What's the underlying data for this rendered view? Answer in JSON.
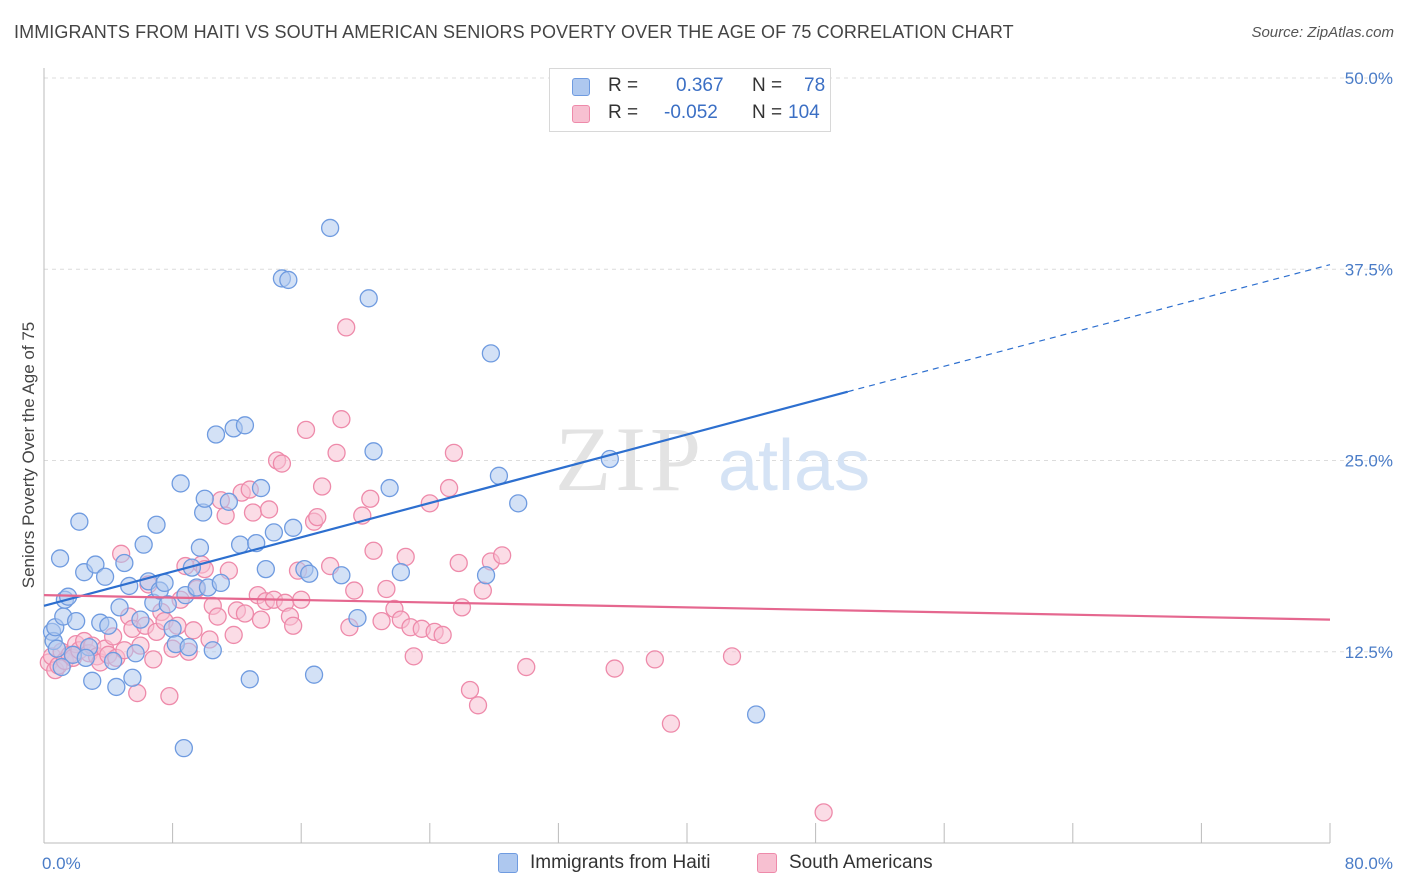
{
  "title": "IMMIGRANTS FROM HAITI VS SOUTH AMERICAN SENIORS POVERTY OVER THE AGE OF 75 CORRELATION CHART",
  "source": "Source: ZipAtlas.com",
  "watermark": {
    "zip": "ZIP",
    "atlas": "atlas"
  },
  "legend": {
    "r_label": "R =",
    "n_label": "N =",
    "series1": {
      "r": "0.367",
      "n": "78"
    },
    "series2": {
      "r": "-0.052",
      "n": "104"
    }
  },
  "colors": {
    "blue_fill": "#aec8ef",
    "blue_stroke": "#6f9be0",
    "blue_line": "#2d6fcf",
    "pink_fill": "#f7c0d1",
    "pink_stroke": "#ee8aaa",
    "pink_line": "#e5678f",
    "grid": "#dcdcdc",
    "tick_text": "#4a7cc7"
  },
  "chart_data": {
    "type": "scatter",
    "title": "IMMIGRANTS FROM HAITI VS SOUTH AMERICAN SENIORS POVERTY OVER THE AGE OF 75 CORRELATION CHART",
    "xlabel": "",
    "ylabel": "Seniors Poverty Over the Age of 75",
    "xlim": [
      0,
      80
    ],
    "ylim": [
      0,
      50
    ],
    "x_tick_labels": [
      "0.0%",
      "80.0%"
    ],
    "y_ticks": [
      12.5,
      25.0,
      37.5,
      50.0
    ],
    "y_tick_labels": [
      "12.5%",
      "25.0%",
      "37.5%",
      "50.0%"
    ],
    "grid": true,
    "legend_position": "top-center",
    "series": [
      {
        "name": "Immigrants from Haiti",
        "color": "#6f9be0",
        "trend": {
          "x0": 0,
          "y0": 15.5,
          "x1": 50,
          "y1": 29.5,
          "dashed_to_x": 80,
          "dashed_to_y": 37.8
        },
        "points": [
          [
            0.5,
            13.8
          ],
          [
            0.6,
            13.2
          ],
          [
            0.7,
            14.1
          ],
          [
            0.8,
            12.7
          ],
          [
            1.0,
            18.6
          ],
          [
            1.2,
            14.8
          ],
          [
            1.3,
            15.9
          ],
          [
            1.5,
            16.1
          ],
          [
            1.8,
            12.3
          ],
          [
            2.0,
            14.5
          ],
          [
            2.2,
            21.0
          ],
          [
            2.5,
            17.7
          ],
          [
            2.8,
            12.8
          ],
          [
            3.0,
            10.6
          ],
          [
            3.2,
            18.2
          ],
          [
            3.5,
            14.4
          ],
          [
            3.8,
            17.4
          ],
          [
            4.0,
            14.2
          ],
          [
            4.3,
            11.9
          ],
          [
            4.5,
            10.2
          ],
          [
            4.7,
            15.4
          ],
          [
            5.0,
            18.3
          ],
          [
            5.3,
            16.8
          ],
          [
            5.5,
            10.8
          ],
          [
            5.7,
            12.4
          ],
          [
            6.0,
            14.6
          ],
          [
            6.2,
            19.5
          ],
          [
            6.5,
            17.1
          ],
          [
            6.8,
            15.7
          ],
          [
            7.0,
            20.8
          ],
          [
            7.2,
            16.5
          ],
          [
            7.5,
            17.0
          ],
          [
            7.7,
            15.6
          ],
          [
            8.0,
            14.0
          ],
          [
            8.2,
            13.0
          ],
          [
            8.5,
            23.5
          ],
          [
            8.7,
            6.2
          ],
          [
            8.8,
            16.2
          ],
          [
            9.0,
            12.8
          ],
          [
            9.2,
            18.0
          ],
          [
            9.5,
            16.7
          ],
          [
            9.7,
            19.3
          ],
          [
            9.9,
            21.6
          ],
          [
            10.0,
            22.5
          ],
          [
            10.2,
            16.7
          ],
          [
            10.5,
            12.6
          ],
          [
            10.7,
            26.7
          ],
          [
            11.0,
            17.0
          ],
          [
            11.5,
            22.3
          ],
          [
            11.8,
            27.1
          ],
          [
            12.2,
            19.5
          ],
          [
            12.5,
            27.3
          ],
          [
            12.8,
            10.7
          ],
          [
            13.2,
            19.6
          ],
          [
            13.5,
            23.2
          ],
          [
            13.8,
            17.9
          ],
          [
            14.3,
            20.3
          ],
          [
            14.8,
            36.9
          ],
          [
            15.2,
            36.8
          ],
          [
            15.5,
            20.6
          ],
          [
            16.2,
            17.9
          ],
          [
            16.5,
            17.6
          ],
          [
            16.8,
            11.0
          ],
          [
            17.8,
            40.2
          ],
          [
            18.5,
            17.5
          ],
          [
            19.5,
            14.7
          ],
          [
            20.2,
            35.6
          ],
          [
            20.5,
            25.6
          ],
          [
            21.5,
            23.2
          ],
          [
            22.2,
            17.7
          ],
          [
            27.8,
            32.0
          ],
          [
            27.5,
            17.5
          ],
          [
            28.3,
            24.0
          ],
          [
            29.5,
            22.2
          ],
          [
            35.2,
            25.1
          ],
          [
            44.3,
            8.4
          ],
          [
            1.1,
            11.5
          ],
          [
            2.6,
            12.1
          ]
        ]
      },
      {
        "name": "South Americans",
        "color": "#ee8aaa",
        "trend": {
          "x0": 0,
          "y0": 16.2,
          "x1": 80,
          "y1": 14.6
        },
        "points": [
          [
            0.3,
            11.8
          ],
          [
            0.5,
            12.2
          ],
          [
            0.7,
            11.3
          ],
          [
            0.9,
            11.6
          ],
          [
            1.1,
            12.5
          ],
          [
            1.3,
            11.9
          ],
          [
            1.6,
            12.3
          ],
          [
            1.8,
            12.1
          ],
          [
            2.0,
            13.0
          ],
          [
            2.2,
            12.6
          ],
          [
            2.5,
            13.2
          ],
          [
            2.8,
            12.4
          ],
          [
            3.0,
            12.9
          ],
          [
            3.3,
            12.2
          ],
          [
            3.5,
            11.8
          ],
          [
            3.8,
            12.7
          ],
          [
            4.0,
            12.3
          ],
          [
            4.3,
            13.5
          ],
          [
            4.5,
            12.1
          ],
          [
            4.8,
            18.9
          ],
          [
            5.0,
            12.6
          ],
          [
            5.3,
            14.8
          ],
          [
            5.5,
            14.0
          ],
          [
            5.8,
            9.8
          ],
          [
            6.0,
            12.9
          ],
          [
            6.3,
            14.2
          ],
          [
            6.5,
            16.9
          ],
          [
            6.8,
            12.0
          ],
          [
            7.0,
            13.8
          ],
          [
            7.3,
            15.1
          ],
          [
            7.5,
            14.5
          ],
          [
            7.8,
            9.6
          ],
          [
            8.0,
            12.7
          ],
          [
            8.3,
            14.2
          ],
          [
            8.5,
            15.9
          ],
          [
            8.8,
            18.1
          ],
          [
            9.0,
            12.5
          ],
          [
            9.3,
            13.9
          ],
          [
            9.5,
            16.6
          ],
          [
            9.8,
            18.2
          ],
          [
            10.0,
            17.9
          ],
          [
            10.3,
            13.3
          ],
          [
            10.5,
            15.5
          ],
          [
            10.8,
            14.8
          ],
          [
            11.0,
            22.4
          ],
          [
            11.3,
            21.4
          ],
          [
            11.5,
            17.8
          ],
          [
            11.8,
            13.6
          ],
          [
            12.0,
            15.2
          ],
          [
            12.3,
            22.9
          ],
          [
            12.5,
            15.0
          ],
          [
            12.8,
            23.1
          ],
          [
            13.0,
            21.6
          ],
          [
            13.3,
            16.2
          ],
          [
            13.5,
            14.6
          ],
          [
            13.8,
            15.8
          ],
          [
            14.0,
            21.8
          ],
          [
            14.3,
            15.9
          ],
          [
            14.5,
            25.0
          ],
          [
            14.8,
            24.8
          ],
          [
            15.0,
            15.7
          ],
          [
            15.3,
            14.8
          ],
          [
            15.5,
            14.2
          ],
          [
            15.8,
            17.8
          ],
          [
            16.0,
            15.9
          ],
          [
            16.3,
            27.0
          ],
          [
            16.8,
            21.0
          ],
          [
            17.0,
            21.3
          ],
          [
            17.3,
            23.3
          ],
          [
            17.8,
            18.1
          ],
          [
            18.2,
            25.5
          ],
          [
            18.5,
            27.7
          ],
          [
            18.8,
            33.7
          ],
          [
            19.0,
            14.1
          ],
          [
            19.3,
            16.5
          ],
          [
            19.8,
            21.4
          ],
          [
            20.3,
            22.5
          ],
          [
            20.5,
            19.1
          ],
          [
            21.0,
            14.5
          ],
          [
            21.3,
            16.6
          ],
          [
            21.8,
            15.3
          ],
          [
            22.2,
            14.6
          ],
          [
            22.5,
            18.7
          ],
          [
            22.8,
            14.1
          ],
          [
            23.0,
            12.2
          ],
          [
            23.5,
            14.0
          ],
          [
            24.0,
            22.2
          ],
          [
            24.3,
            13.8
          ],
          [
            24.8,
            13.6
          ],
          [
            25.2,
            23.2
          ],
          [
            25.5,
            25.5
          ],
          [
            25.8,
            18.3
          ],
          [
            26.0,
            15.4
          ],
          [
            26.5,
            10.0
          ],
          [
            27.0,
            9.0
          ],
          [
            27.3,
            16.5
          ],
          [
            27.8,
            18.4
          ],
          [
            28.5,
            18.8
          ],
          [
            30.0,
            11.5
          ],
          [
            35.5,
            11.4
          ],
          [
            38.0,
            12.0
          ],
          [
            39.0,
            7.8
          ],
          [
            42.8,
            12.2
          ],
          [
            48.5,
            2.0
          ]
        ]
      }
    ]
  },
  "bottom_legend": [
    {
      "label": "Immigrants from Haiti"
    },
    {
      "label": "South Americans"
    }
  ]
}
